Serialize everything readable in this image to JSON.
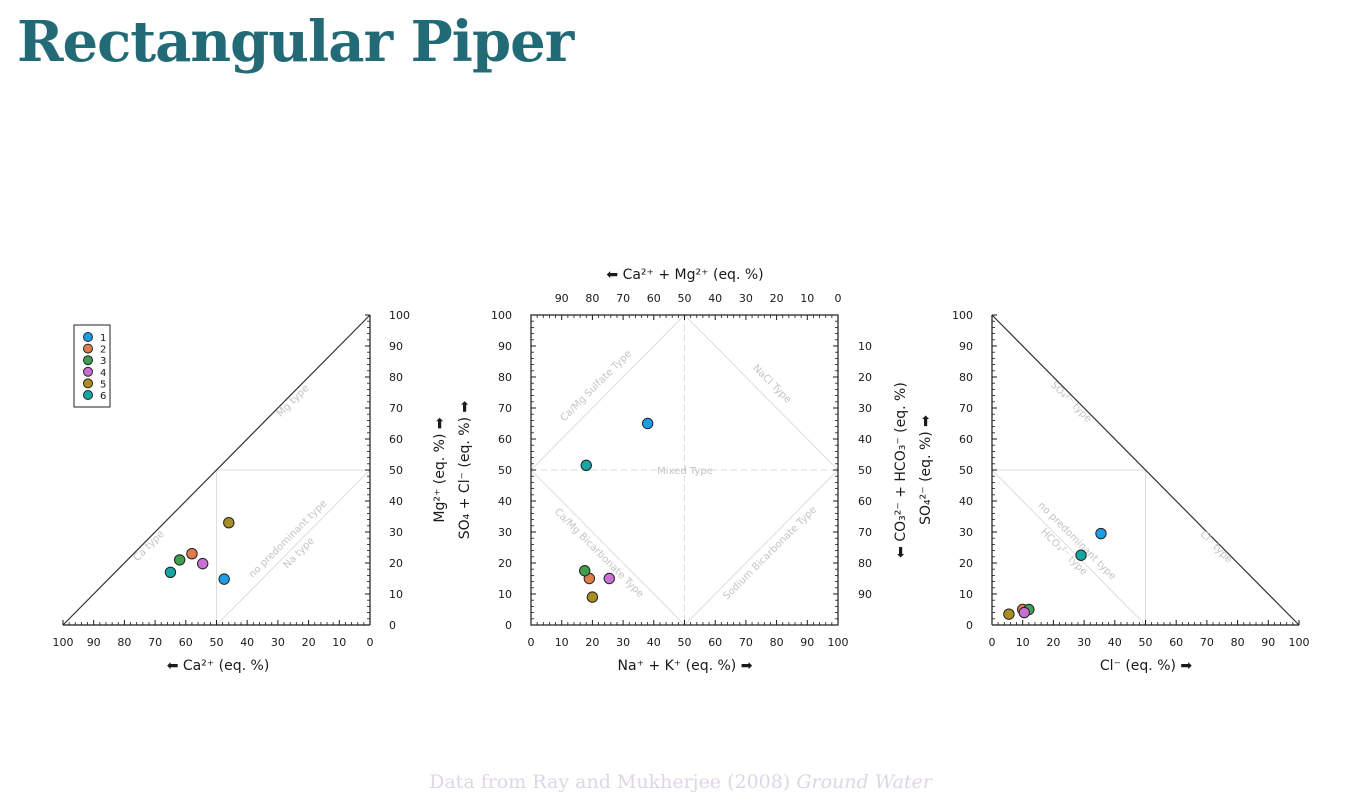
{
  "page": {
    "title": "Rectangular Piper",
    "credit_text": "Data from Ray and Mukherjee (2008)",
    "credit_journal": "Ground Water"
  },
  "chart_data": [
    {
      "type": "scatter",
      "panel": "cation-triangle",
      "xlabel": "⬅ Ca²⁺ (eq. %)",
      "ylabel": "Mg²⁺ (eq. %) ➡",
      "xlim": [
        100,
        0
      ],
      "ylim": [
        0,
        100
      ],
      "x_ticks": [
        "100",
        "90",
        "80",
        "70",
        "60",
        "50",
        "40",
        "30",
        "20",
        "10",
        "0"
      ],
      "y_ticks": [
        "0",
        "10",
        "20",
        "30",
        "40",
        "50",
        "60",
        "70",
        "80",
        "90",
        "100"
      ],
      "regions": [
        "Mg type",
        "Ca type",
        "no predominant type",
        "Na type"
      ],
      "legend": {
        "position": "top-left",
        "entries": [
          "1",
          "2",
          "3",
          "4",
          "5",
          "6"
        ]
      },
      "points": [
        {
          "sample": "1",
          "x": 47.5,
          "y": 14.8
        },
        {
          "sample": "2",
          "x": 58.0,
          "y": 23.0
        },
        {
          "sample": "3",
          "x": 62.0,
          "y": 21.0
        },
        {
          "sample": "4",
          "x": 54.5,
          "y": 19.8
        },
        {
          "sample": "5",
          "x": 46.0,
          "y": 33.0
        },
        {
          "sample": "6",
          "x": 65.0,
          "y": 17.0
        }
      ]
    },
    {
      "type": "scatter",
      "panel": "diamond-square",
      "xlabel": "Na⁺ + K⁺ (eq. %) ➡",
      "x2label": "⬅ Ca²⁺ + Mg²⁺ (eq. %)",
      "ylabel": "SO₄ + Cl⁻ (eq. %) ➡",
      "y2label": "⬅ CO₃²⁻ + HCO₃⁻ (eq. %)",
      "xlim": [
        0,
        100
      ],
      "ylim": [
        0,
        100
      ],
      "x_ticks": [
        "0",
        "10",
        "20",
        "30",
        "40",
        "50",
        "60",
        "70",
        "80",
        "90",
        "100"
      ],
      "x2_ticks": [
        "90",
        "80",
        "70",
        "60",
        "50",
        "40",
        "30",
        "20",
        "10",
        "0"
      ],
      "y_ticks": [
        "0",
        "10",
        "20",
        "30",
        "40",
        "50",
        "60",
        "70",
        "80",
        "90",
        "100"
      ],
      "y2_ticks": [
        "10",
        "20",
        "30",
        "40",
        "50",
        "60",
        "70",
        "80",
        "90"
      ],
      "regions": [
        "Ca/Mg Sulfate Type",
        "NaCl Type",
        "Mixed Type",
        "Ca/Mg Bicarbonate Type",
        "Sodium Bicarbonate Type"
      ],
      "points": [
        {
          "sample": "1",
          "x": 38.0,
          "y": 65.0
        },
        {
          "sample": "2",
          "x": 19.0,
          "y": 15.0
        },
        {
          "sample": "3",
          "x": 17.5,
          "y": 17.5
        },
        {
          "sample": "4",
          "x": 25.5,
          "y": 15.0
        },
        {
          "sample": "5",
          "x": 20.0,
          "y": 9.0
        },
        {
          "sample": "6",
          "x": 18.0,
          "y": 51.5
        }
      ]
    },
    {
      "type": "scatter",
      "panel": "anion-triangle",
      "xlabel": "Cl⁻ (eq. %) ➡",
      "ylabel": "SO₄²⁻ (eq. %) ➡",
      "xlim": [
        0,
        100
      ],
      "ylim": [
        0,
        100
      ],
      "x_ticks": [
        "0",
        "10",
        "20",
        "30",
        "40",
        "50",
        "60",
        "70",
        "80",
        "90",
        "100"
      ],
      "y_ticks": [
        "0",
        "10",
        "20",
        "30",
        "40",
        "50",
        "60",
        "70",
        "80",
        "90",
        "100"
      ],
      "regions": [
        "SO₄²⁻ type",
        "no predominant type",
        "HCO₃²⁻ type",
        "Cl⁻ type"
      ],
      "points": [
        {
          "sample": "1",
          "x": 35.5,
          "y": 29.5
        },
        {
          "sample": "2",
          "x": 10.0,
          "y": 5.0
        },
        {
          "sample": "3",
          "x": 12.0,
          "y": 5.0
        },
        {
          "sample": "4",
          "x": 10.5,
          "y": 4.0
        },
        {
          "sample": "5",
          "x": 5.5,
          "y": 3.5
        },
        {
          "sample": "6",
          "x": 29.0,
          "y": 22.5
        }
      ]
    }
  ],
  "colors": {
    "series": [
      "#1f9ce6",
      "#e07b4c",
      "#3f9f4e",
      "#c76fd2",
      "#aa8e22",
      "#16a7a4"
    ],
    "title": "#226b76",
    "axis": "#1a1a1a",
    "region_label": "#c4c4c4",
    "region_line": "#dedede"
  }
}
